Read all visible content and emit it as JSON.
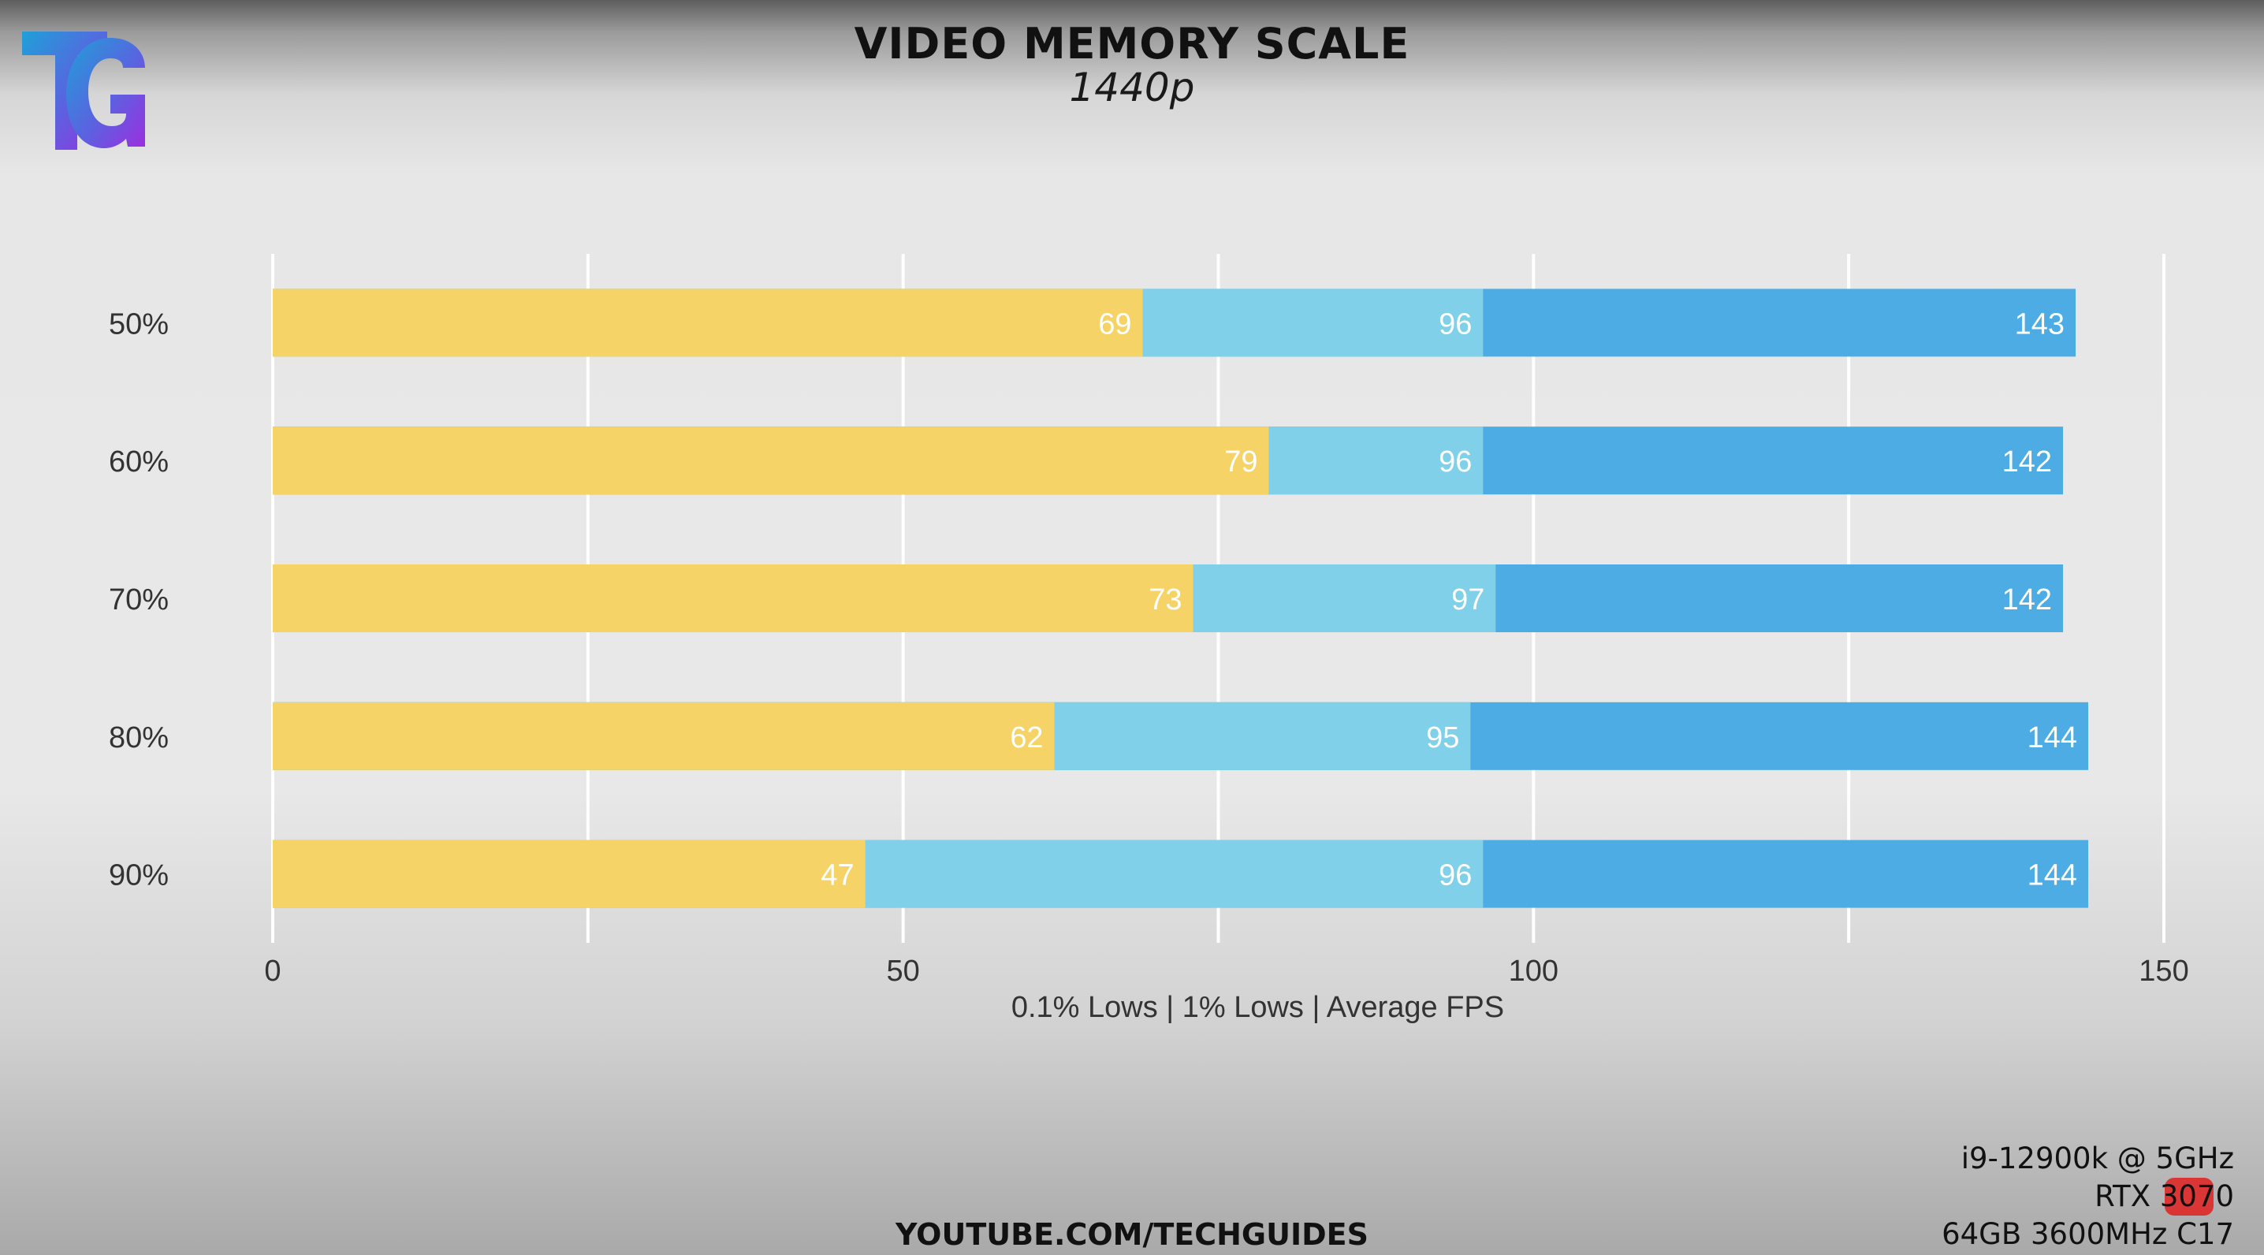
{
  "header": {
    "title": "VIDEO MEMORY SCALE",
    "subtitle": "1440p"
  },
  "footer": {
    "channel": "YOUTUBE.COM/TECHGUIDES"
  },
  "specs": {
    "cpu": "i9-12900k @ 5GHz",
    "gpu": "RTX 3070",
    "ram": "64GB 3600MHz C17"
  },
  "colors": {
    "low01": "#f5d366",
    "low1": "#7fd0e8",
    "avg": "#4dace3"
  },
  "icons": {
    "logo": "tg-logo-icon"
  },
  "chart_data": {
    "type": "bar",
    "orientation": "horizontal",
    "stacked_overlay": true,
    "categories": [
      "50%",
      "60%",
      "70%",
      "80%",
      "90%"
    ],
    "series": [
      {
        "key": "low01",
        "values": [
          69,
          79,
          73,
          62,
          47
        ]
      },
      {
        "key": "low1",
        "values": [
          96,
          96,
          97,
          95,
          96
        ]
      },
      {
        "key": "avg",
        "values": [
          143,
          142,
          142,
          144,
          144
        ]
      }
    ],
    "xlabel": "0.1% Lows | 1% Lows | Average FPS",
    "ylabel": "",
    "xlim": [
      0,
      150
    ],
    "xticks": [
      0,
      50,
      100,
      150
    ],
    "grid": true
  }
}
